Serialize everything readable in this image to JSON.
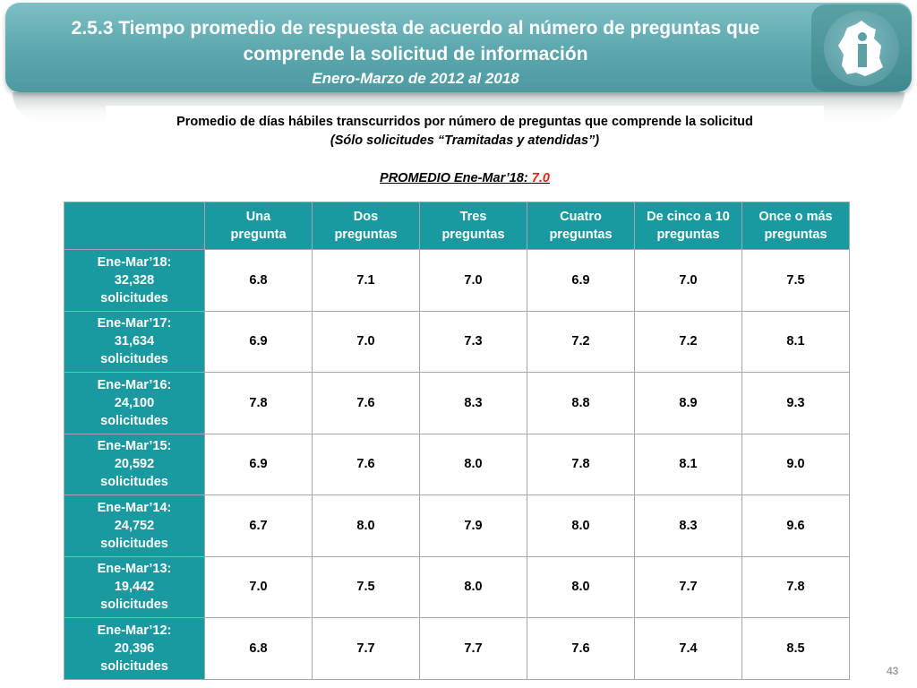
{
  "header": {
    "title": "2.5.3 Tiempo promedio de respuesta de acuerdo al número de preguntas que comprende la solicitud de información",
    "subtitle": "Enero-Marzo de 2012 al 2018"
  },
  "logo": {
    "icon": "institution-logo-icon",
    "color": "#ffffff"
  },
  "description": {
    "line1": "Promedio de días hábiles transcurridos por número de preguntas que comprende la solicitud",
    "line2": "(Sólo solicitudes “Tramitadas y atendidas”)"
  },
  "average": {
    "label": "PROMEDIO Ene-Mar’18:",
    "value": "7.0",
    "value_color": "#e3201b"
  },
  "table": {
    "header_color": "#1a9aa0",
    "columns": [
      [
        "Una",
        "pregunta"
      ],
      [
        "Dos",
        "preguntas"
      ],
      [
        "Tres",
        "preguntas"
      ],
      [
        "Cuatro",
        "preguntas"
      ],
      [
        "De cinco a 10",
        "preguntas"
      ],
      [
        "Once o más",
        "preguntas"
      ]
    ],
    "rows": [
      {
        "period": "Ene-Mar’18:",
        "count": "32,328",
        "unit": "solicitudes",
        "values": [
          "6.8",
          "7.1",
          "7.0",
          "6.9",
          "7.0",
          "7.5"
        ]
      },
      {
        "period": "Ene-Mar’17:",
        "count": "31,634",
        "unit": "solicitudes",
        "values": [
          "6.9",
          "7.0",
          "7.3",
          "7.2",
          "7.2",
          "8.1"
        ]
      },
      {
        "period": "Ene-Mar’16:",
        "count": "24,100",
        "unit": "solicitudes",
        "values": [
          "7.8",
          "7.6",
          "8.3",
          "8.8",
          "8.9",
          "9.3"
        ]
      },
      {
        "period": "Ene-Mar’15:",
        "count": "20,592",
        "unit": "solicitudes",
        "values": [
          "6.9",
          "7.6",
          "8.0",
          "7.8",
          "8.1",
          "9.0"
        ]
      },
      {
        "period": "Ene-Mar’14:",
        "count": "24,752",
        "unit": "solicitudes",
        "values": [
          "6.7",
          "8.0",
          "7.9",
          "8.0",
          "8.3",
          "9.6"
        ]
      },
      {
        "period": "Ene-Mar’13:",
        "count": "19,442",
        "unit": "solicitudes",
        "values": [
          "7.0",
          "7.5",
          "8.0",
          "8.0",
          "7.7",
          "7.8"
        ]
      },
      {
        "period": "Ene-Mar’12:",
        "count": "20,396",
        "unit": "solicitudes",
        "values": [
          "6.8",
          "7.7",
          "7.7",
          "7.6",
          "7.4",
          "8.5"
        ]
      }
    ]
  },
  "page_number": "43"
}
